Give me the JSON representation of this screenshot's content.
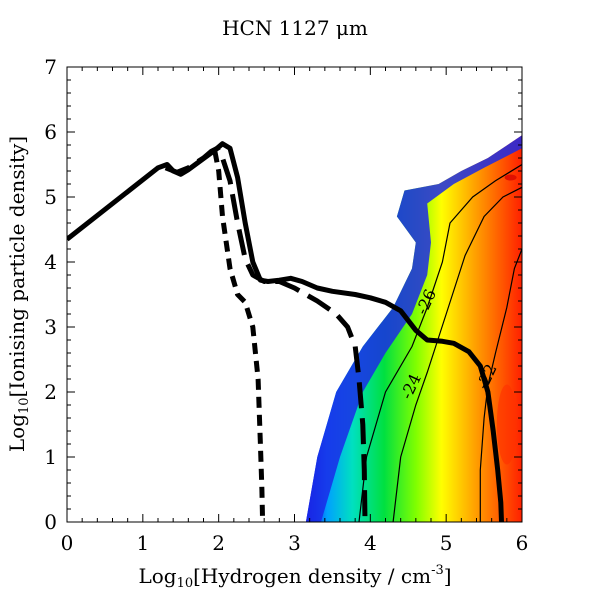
{
  "chart_data": {
    "type": "heatmap",
    "title": "HCN 1127 μm",
    "xlabel_parts": [
      "Log",
      "10",
      "[Hydrogen density / cm",
      "-3",
      "]"
    ],
    "ylabel_parts": [
      "Log",
      "10",
      "[Ionising particle density]"
    ],
    "xlim": [
      0,
      6
    ],
    "ylim": [
      0,
      7
    ],
    "xticks": [
      "0",
      "1",
      "2",
      "3",
      "4",
      "5",
      "6"
    ],
    "yticks": [
      "0",
      "1",
      "2",
      "3",
      "4",
      "5",
      "6",
      "7"
    ],
    "grid": false,
    "colormap": [
      "#1020e0",
      "#00a0ff",
      "#00e0c0",
      "#00e040",
      "#80ff00",
      "#ffff00",
      "#ffa000",
      "#ff2000"
    ],
    "heat_region": {
      "left_boundary": [
        [
          3.15,
          0
        ],
        [
          3.3,
          1
        ],
        [
          3.55,
          2
        ],
        [
          3.9,
          2.7
        ],
        [
          4.3,
          3.3
        ],
        [
          4.55,
          3.9
        ],
        [
          4.6,
          4.3
        ],
        [
          4.35,
          4.7
        ],
        [
          4.45,
          5.1
        ],
        [
          4.9,
          5.2
        ],
        [
          5.2,
          5.4
        ],
        [
          5.55,
          5.6
        ],
        [
          6.0,
          5.95
        ]
      ],
      "low_level_edge": [
        [
          3.35,
          0
        ],
        [
          3.6,
          1
        ],
        [
          3.9,
          2
        ],
        [
          4.2,
          2.6
        ],
        [
          4.55,
          3.2
        ],
        [
          4.75,
          3.8
        ],
        [
          4.8,
          4.3
        ],
        [
          4.75,
          4.9
        ],
        [
          5.1,
          5.2
        ],
        [
          5.5,
          5.45
        ],
        [
          6.0,
          5.75
        ]
      ],
      "peak_locations": [
        [
          5.85,
          5.3
        ],
        [
          5.8,
          1.5
        ]
      ]
    },
    "contours": [
      {
        "label": "-26",
        "label_pos": [
          4.8,
          3.35
        ],
        "points": [
          [
            3.85,
            0
          ],
          [
            3.95,
            1
          ],
          [
            4.2,
            2
          ],
          [
            4.55,
            2.7
          ],
          [
            4.75,
            3.3
          ],
          [
            4.95,
            4.0
          ],
          [
            5.05,
            4.6
          ],
          [
            5.35,
            5.0
          ],
          [
            5.65,
            5.25
          ],
          [
            6.0,
            5.5
          ]
        ]
      },
      {
        "label": "-24",
        "label_pos": [
          4.6,
          2.05
        ],
        "points": [
          [
            4.3,
            0
          ],
          [
            4.4,
            1
          ],
          [
            4.6,
            1.8
          ],
          [
            4.75,
            2.3
          ],
          [
            5.0,
            3.2
          ],
          [
            5.25,
            4.1
          ],
          [
            5.5,
            4.7
          ],
          [
            5.75,
            5.0
          ],
          [
            6.0,
            5.15
          ]
        ]
      },
      {
        "label": "-22",
        "label_pos": [
          5.6,
          2.2
        ],
        "points": [
          [
            5.45,
            0
          ],
          [
            5.45,
            0.8
          ],
          [
            5.5,
            1.6
          ],
          [
            5.55,
            2.1
          ],
          [
            5.65,
            2.6
          ],
          [
            5.8,
            3.3
          ],
          [
            5.9,
            3.9
          ],
          [
            6.0,
            4.2
          ]
        ]
      }
    ],
    "series": [
      {
        "style": "solid",
        "points": [
          [
            0.0,
            4.35
          ],
          [
            1.2,
            5.45
          ],
          [
            1.32,
            5.5
          ],
          [
            1.4,
            5.4
          ],
          [
            1.5,
            5.35
          ],
          [
            1.6,
            5.42
          ],
          [
            1.75,
            5.55
          ],
          [
            1.95,
            5.72
          ],
          [
            2.05,
            5.82
          ],
          [
            2.15,
            5.75
          ],
          [
            2.25,
            5.3
          ],
          [
            2.35,
            4.6
          ],
          [
            2.45,
            4.0
          ],
          [
            2.55,
            3.72
          ],
          [
            2.65,
            3.7
          ],
          [
            2.8,
            3.72
          ],
          [
            2.95,
            3.75
          ],
          [
            3.1,
            3.7
          ],
          [
            3.3,
            3.6
          ],
          [
            3.5,
            3.55
          ],
          [
            3.8,
            3.5
          ],
          [
            4.0,
            3.45
          ],
          [
            4.2,
            3.38
          ],
          [
            4.4,
            3.25
          ],
          [
            4.6,
            2.95
          ],
          [
            4.75,
            2.8
          ],
          [
            4.95,
            2.78
          ],
          [
            5.1,
            2.75
          ],
          [
            5.3,
            2.62
          ],
          [
            5.45,
            2.4
          ],
          [
            5.55,
            2.0
          ],
          [
            5.62,
            1.4
          ],
          [
            5.68,
            0.8
          ],
          [
            5.72,
            0.3
          ],
          [
            5.73,
            0
          ]
        ]
      },
      {
        "style": "longdash",
        "points": [
          [
            1.3,
            5.45
          ],
          [
            1.45,
            5.38
          ],
          [
            1.6,
            5.45
          ],
          [
            1.8,
            5.6
          ],
          [
            1.9,
            5.7
          ],
          [
            1.98,
            5.75
          ],
          [
            2.05,
            5.6
          ],
          [
            2.15,
            5.25
          ],
          [
            2.25,
            4.6
          ],
          [
            2.35,
            4.05
          ],
          [
            2.45,
            3.8
          ],
          [
            2.6,
            3.7
          ],
          [
            2.8,
            3.7
          ],
          [
            3.0,
            3.6
          ],
          [
            3.3,
            3.4
          ],
          [
            3.55,
            3.2
          ],
          [
            3.7,
            3.0
          ],
          [
            3.8,
            2.7
          ],
          [
            3.85,
            2.2
          ],
          [
            3.9,
            1.5
          ],
          [
            3.92,
            0.8
          ],
          [
            3.93,
            0
          ]
        ]
      },
      {
        "style": "shortdash",
        "points": [
          [
            1.95,
            5.7
          ],
          [
            2.0,
            5.4
          ],
          [
            2.05,
            4.7
          ],
          [
            2.15,
            3.9
          ],
          [
            2.25,
            3.5
          ],
          [
            2.35,
            3.38
          ],
          [
            2.45,
            3.0
          ],
          [
            2.52,
            2.2
          ],
          [
            2.55,
            1.2
          ],
          [
            2.57,
            0.5
          ],
          [
            2.58,
            0
          ]
        ]
      }
    ]
  }
}
